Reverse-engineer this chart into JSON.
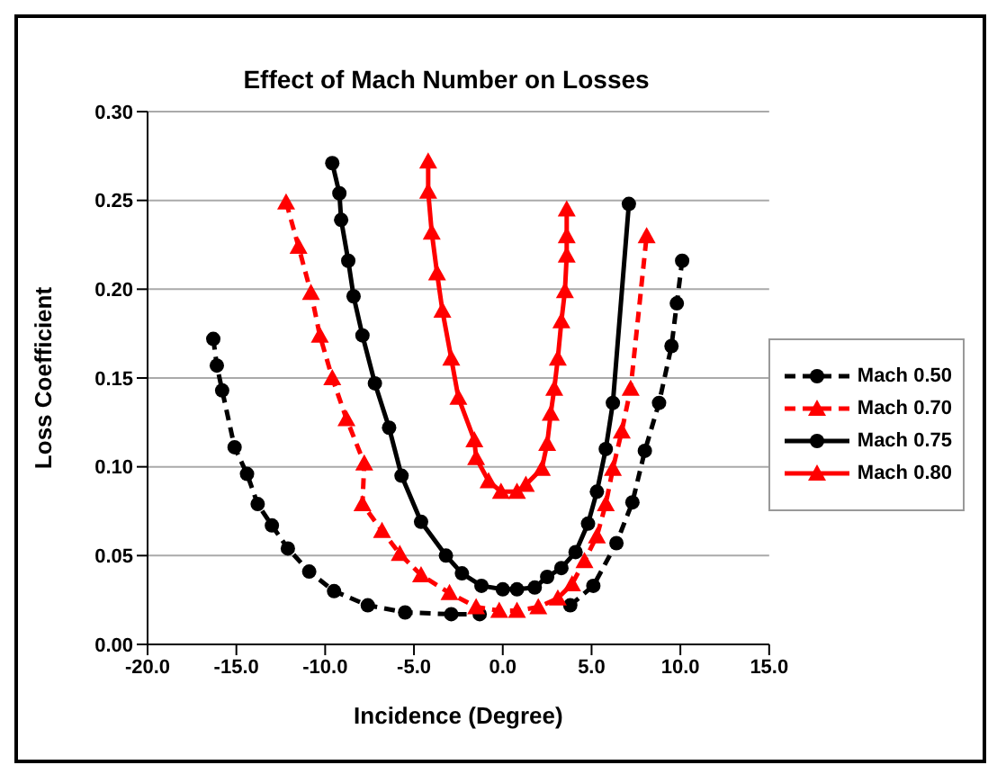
{
  "chart_data": {
    "type": "line",
    "title": "Effect of Mach Number on Losses",
    "xlabel": "Incidence (Degree)",
    "ylabel": "Loss Coefficient",
    "xlim": [
      -20,
      15
    ],
    "xticks": [
      {
        "value": -20,
        "label": "-20.0"
      },
      {
        "value": -15,
        "label": "-15.0"
      },
      {
        "value": -10,
        "label": "-10.0"
      },
      {
        "value": -5,
        "label": "-5.0"
      },
      {
        "value": 0,
        "label": "0.0"
      },
      {
        "value": 5,
        "label": "5.0"
      },
      {
        "value": 10,
        "label": "10.0"
      },
      {
        "value": 15,
        "label": "15.0"
      }
    ],
    "ylim": [
      0,
      0.3
    ],
    "yticks": [
      {
        "value": 0,
        "label": "0.00"
      },
      {
        "value": 0.05,
        "label": "0.05"
      },
      {
        "value": 0.1,
        "label": "0.10"
      },
      {
        "value": 0.15,
        "label": "0.15"
      },
      {
        "value": 0.2,
        "label": "0.20"
      },
      {
        "value": 0.25,
        "label": "0.25"
      },
      {
        "value": 0.3,
        "label": "0.30"
      }
    ],
    "grid": "y",
    "legend": "right",
    "series": [
      {
        "name": "Mach 0.50",
        "color": "#000000",
        "marker": "circle",
        "line_style": "dashed",
        "x": [
          -16.3,
          -16.1,
          -15.8,
          -15.1,
          -14.4,
          -13.8,
          -13.0,
          -12.1,
          -10.9,
          -9.5,
          -7.6,
          -5.5,
          -2.9,
          -1.3,
          0.8,
          3.8,
          5.1,
          6.4,
          7.3,
          8.0,
          8.8,
          9.5,
          9.8,
          10.1
        ],
        "values": [
          0.172,
          0.157,
          0.143,
          0.111,
          0.096,
          0.079,
          0.067,
          0.054,
          0.041,
          0.03,
          0.022,
          0.018,
          0.017,
          0.017,
          null,
          0.022,
          0.033,
          0.057,
          0.08,
          0.109,
          0.136,
          0.168,
          0.192,
          0.216
        ]
      },
      {
        "name": "Mach 0.70",
        "color": "#ff0000",
        "marker": "triangle",
        "line_style": "dashed",
        "x": [
          -12.2,
          -11.5,
          -10.8,
          -10.3,
          -9.6,
          -8.8,
          -7.8,
          -7.9,
          -6.8,
          -5.8,
          -4.6,
          -3.0,
          -1.5,
          -0.2,
          0.8,
          2.0,
          3.1,
          3.9,
          4.6,
          5.3,
          5.8,
          6.2,
          6.7,
          7.2,
          8.1
        ],
        "values": [
          0.249,
          0.224,
          0.198,
          0.174,
          0.15,
          0.127,
          0.102,
          0.079,
          0.064,
          0.051,
          0.039,
          0.029,
          0.021,
          0.019,
          0.019,
          0.021,
          0.026,
          0.034,
          0.047,
          0.061,
          0.079,
          0.099,
          0.12,
          0.144,
          0.23
        ]
      },
      {
        "name": "Mach 0.75",
        "color": "#000000",
        "marker": "circle",
        "line_style": "solid",
        "x": [
          -9.6,
          -9.2,
          -9.1,
          -8.7,
          -8.4,
          -7.9,
          -7.2,
          -6.4,
          -5.7,
          -4.6,
          -3.2,
          -2.3,
          -1.2,
          0.0,
          0.8,
          1.8,
          2.5,
          3.3,
          4.1,
          4.8,
          5.3,
          5.8,
          6.2,
          7.1
        ],
        "values": [
          0.271,
          0.254,
          0.239,
          0.216,
          0.196,
          0.174,
          0.147,
          0.122,
          0.095,
          0.069,
          0.05,
          0.04,
          0.033,
          0.031,
          0.031,
          0.032,
          0.038,
          0.043,
          0.052,
          0.068,
          0.086,
          0.11,
          0.136,
          0.248
        ]
      },
      {
        "name": "Mach 0.80",
        "color": "#ff0000",
        "marker": "triangle",
        "line_style": "solid",
        "x": [
          -4.2,
          -4.2,
          -4.0,
          -3.7,
          -3.4,
          -2.9,
          -2.5,
          -1.6,
          -1.5,
          -0.8,
          -0.1,
          0.8,
          1.3,
          2.2,
          2.5,
          2.7,
          2.9,
          3.1,
          3.3,
          3.5,
          3.6,
          3.6,
          3.6
        ],
        "values": [
          0.272,
          0.255,
          0.232,
          0.209,
          0.188,
          0.161,
          0.139,
          0.115,
          0.105,
          0.092,
          0.086,
          0.086,
          0.09,
          0.099,
          0.113,
          0.13,
          0.144,
          0.161,
          0.182,
          0.199,
          0.219,
          0.23,
          0.245
        ]
      }
    ]
  }
}
